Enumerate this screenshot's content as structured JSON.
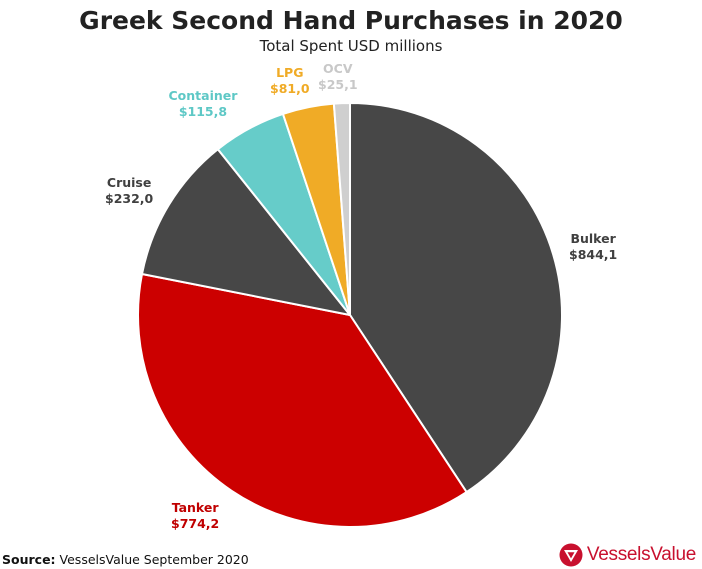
{
  "chart_data": {
    "type": "pie",
    "title": "Greek Second Hand Purchases in 2020",
    "subtitle": "Total Spent USD millions",
    "start_angle_deg": 0,
    "direction": "clockwise",
    "slices": [
      {
        "name": "Bulker",
        "value_label": "$844,1",
        "value": 844.1,
        "color": "#474747"
      },
      {
        "name": "Tanker",
        "value_label": "$774,2",
        "value": 774.2,
        "color": "#cc0000"
      },
      {
        "name": "Cruise",
        "value_label": "$232,0",
        "value": 232.0,
        "color": "#474747"
      },
      {
        "name": "Container",
        "value_label": "$115,8",
        "value": 115.8,
        "color": "#66ccc9"
      },
      {
        "name": "LPG",
        "value_label": "$81,0",
        "value": 81.0,
        "color": "#f0ab26"
      },
      {
        "name": "OCV",
        "value_label": "$25,1",
        "value": 25.1,
        "color": "#cfcfcf"
      }
    ],
    "label_colors": {
      "Bulker": "#404040",
      "Tanker": "#c00000",
      "Cruise": "#404040",
      "Container": "#5ec8c6",
      "LPG": "#f0ab26",
      "OCV": "#c8c8c8"
    },
    "legend": "none"
  },
  "footer": {
    "source_label": "Source:",
    "source_text": "VesselsValue September 2020",
    "logo_text": "VesselsValue",
    "logo_color": "#c8102e",
    "logo_icon": "vesselsvalue-triangle-icon"
  }
}
